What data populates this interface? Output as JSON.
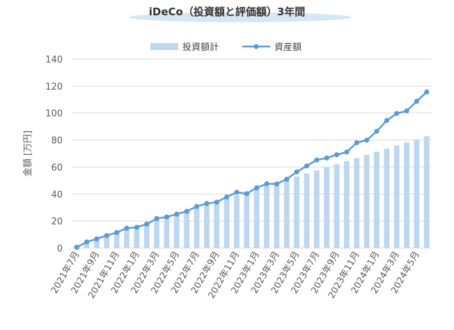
{
  "chart_data": {
    "type": "bar+line",
    "title": "iDeCo（投資額と評価額）3年間",
    "ylabel": "金額 [万円]",
    "xlabel": "",
    "ylim": [
      0,
      140
    ],
    "yticks": [
      0,
      20,
      40,
      60,
      80,
      100,
      120,
      140
    ],
    "grid": true,
    "legend_position": "top-center",
    "categories": [
      "2021-07",
      "2021-08",
      "2021-09",
      "2021-10",
      "2021-11",
      "2021-12",
      "2022-01",
      "2022-02",
      "2022-03",
      "2022-04",
      "2022-05",
      "2022-06",
      "2022-07",
      "2022-08",
      "2022-09",
      "2022-10",
      "2022-11",
      "2022-12",
      "2023-01",
      "2023-02",
      "2023-03",
      "2023-04",
      "2023-05",
      "2023-06",
      "2023-07",
      "2023-08",
      "2023-09",
      "2023-10",
      "2023-11",
      "2023-12",
      "2024-01",
      "2024-02",
      "2024-03",
      "2024-04",
      "2024-05",
      "2024-06"
    ],
    "x_tick_labels": [
      "2021年7月",
      "2021年9月",
      "2021年11月",
      "2022年1月",
      "2022年3月",
      "2022年5月",
      "2022年7月",
      "2022年9月",
      "2022年11月",
      "2023年1月",
      "2023年3月",
      "2023年5月",
      "2023年7月",
      "2023年9月",
      "2023年11月",
      "2024年1月",
      "2024年3月",
      "2024年5月"
    ],
    "series": [
      {
        "name": "投資額計",
        "type": "bar",
        "color": "#bdd7ee",
        "values": [
          2.3,
          4.6,
          6.9,
          9.2,
          11.5,
          13.8,
          16.1,
          18.4,
          20.7,
          23.0,
          25.3,
          27.6,
          29.9,
          32.2,
          34.5,
          36.8,
          39.1,
          41.4,
          43.7,
          46.0,
          48.3,
          50.6,
          52.9,
          55.2,
          57.5,
          59.8,
          62.1,
          64.4,
          66.7,
          69.0,
          71.3,
          73.6,
          75.9,
          78.2,
          80.5,
          82.8
        ]
      },
      {
        "name": "資産額",
        "type": "line",
        "color": "#5b9bd5",
        "values": [
          0.5,
          4.5,
          6.8,
          9.3,
          11.5,
          14.7,
          15.4,
          17.7,
          21.8,
          23.0,
          25.1,
          27.2,
          30.8,
          33.0,
          34.0,
          37.8,
          41.3,
          40.3,
          44.6,
          47.6,
          47.5,
          51.0,
          56.4,
          60.8,
          65.2,
          66.7,
          69.1,
          71.1,
          78.0,
          79.9,
          86.5,
          94.5,
          99.7,
          101.6,
          108.7,
          115.6
        ]
      }
    ]
  }
}
